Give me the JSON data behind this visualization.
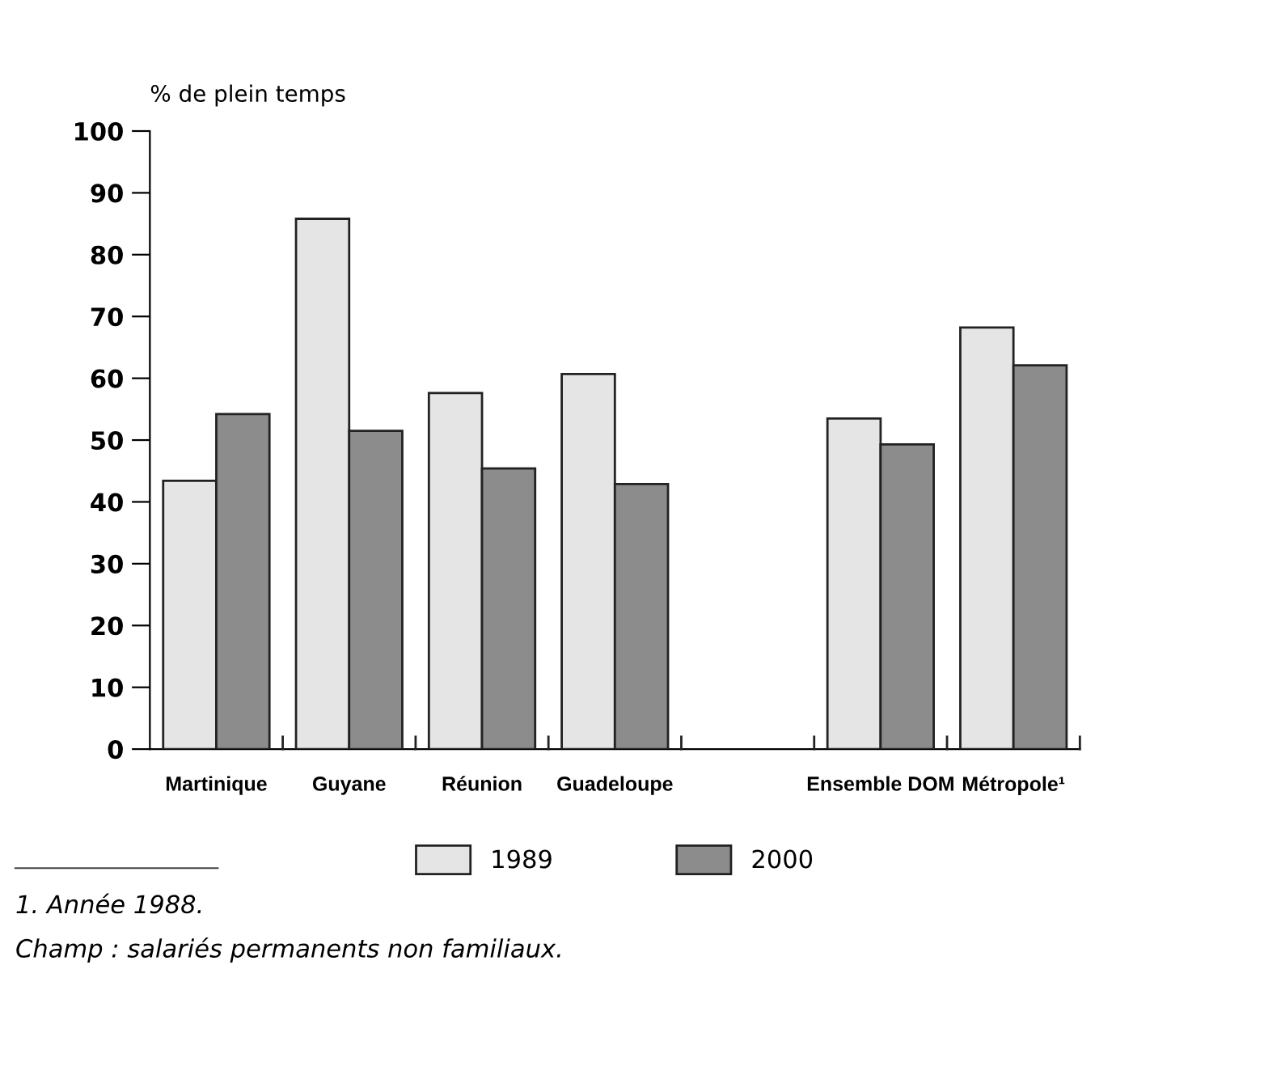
{
  "chart_data": {
    "type": "bar",
    "ylabel": "% de plein temps",
    "categories": [
      "Martinique",
      "Guyane",
      "Réunion",
      "Guadeloupe",
      null,
      "Ensemble DOM",
      "Métropole¹"
    ],
    "series": [
      {
        "name": "1989",
        "color": "#e5e5e5",
        "values": [
          43.4,
          85.8,
          57.6,
          60.7,
          null,
          53.5,
          68.2
        ]
      },
      {
        "name": "2000",
        "color": "#8c8c8c",
        "values": [
          54.2,
          51.5,
          45.4,
          42.9,
          null,
          49.3,
          62.1
        ]
      }
    ],
    "ylim": [
      0,
      100
    ],
    "yticks": [
      0,
      10,
      20,
      30,
      40,
      50,
      60,
      70,
      80,
      90,
      100
    ],
    "grid": false,
    "legend": "bottom",
    "annotations": [
      "1. Année 1988.",
      "Champ : salariés permanents non familiaux."
    ]
  }
}
